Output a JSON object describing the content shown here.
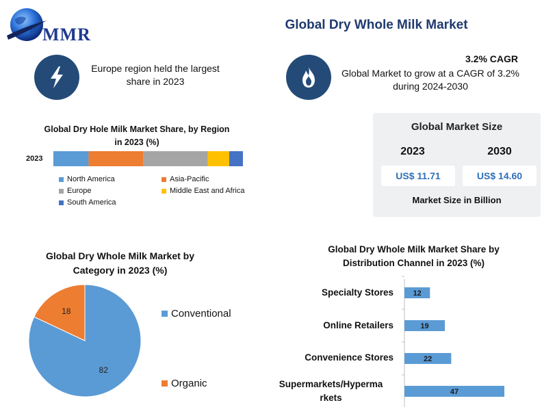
{
  "header": {
    "logo_text": "MMR",
    "title": "Global Dry Whole Milk Market"
  },
  "facts": {
    "region_icon": "lightning-icon",
    "region_text": "Europe region held the largest share in 2023",
    "cagr_icon": "flame-icon",
    "cagr_title": "3.2% CAGR",
    "cagr_text": "Global Market to grow at a CAGR of 3.2% during 2024-2030"
  },
  "market_size": {
    "title": "Global Market Size",
    "year_start": "2023",
    "year_end": "2030",
    "value_start": "US$ 11.71",
    "value_end": "US$ 14.60",
    "footer": "Market Size in Billion"
  },
  "colors": {
    "north_america": "#5b9bd5",
    "asia_pacific": "#ed7d31",
    "europe": "#a5a5a5",
    "mea": "#ffc000",
    "south_america": "#4472c4",
    "conventional": "#5b9bd5",
    "organic": "#ed7d31",
    "channel_bar": "#5b9bd5"
  },
  "chart_data": [
    {
      "type": "bar",
      "orientation": "horizontal-stacked",
      "title": "Global Dry Hole Milk Market Share, by Region in 2023 (%)",
      "categories": [
        "2023"
      ],
      "series": [
        {
          "name": "North America",
          "values": [
            18
          ]
        },
        {
          "name": "Asia-Pacific",
          "values": [
            28
          ]
        },
        {
          "name": "Europe",
          "values": [
            33
          ]
        },
        {
          "name": "Middle East and Africa",
          "values": [
            11
          ]
        },
        {
          "name": "South America",
          "values": [
            7
          ]
        }
      ],
      "xlim": [
        0,
        100
      ],
      "legend": "bottom"
    },
    {
      "type": "pie",
      "title": "Global Dry Whole Milk Market by Category in 2023 (%)",
      "labels": [
        "Conventional",
        "Organic"
      ],
      "values": [
        82,
        18
      ],
      "legend": "right"
    },
    {
      "type": "bar",
      "orientation": "horizontal",
      "title": "Global Dry Whole Milk Market Share by Distribution  Channel in 2023 (%)",
      "categories": [
        "Specialty Stores",
        "Online Retailers",
        "Convenience Stores",
        "Supermarkets/Hypermarkets"
      ],
      "category_labels": [
        "Specialty Stores",
        "Online Retailers",
        "Convenience Stores",
        "Supermarkets/Hyperma rkets"
      ],
      "values": [
        12,
        19,
        22,
        47
      ],
      "xlim": [
        0,
        60
      ]
    }
  ]
}
